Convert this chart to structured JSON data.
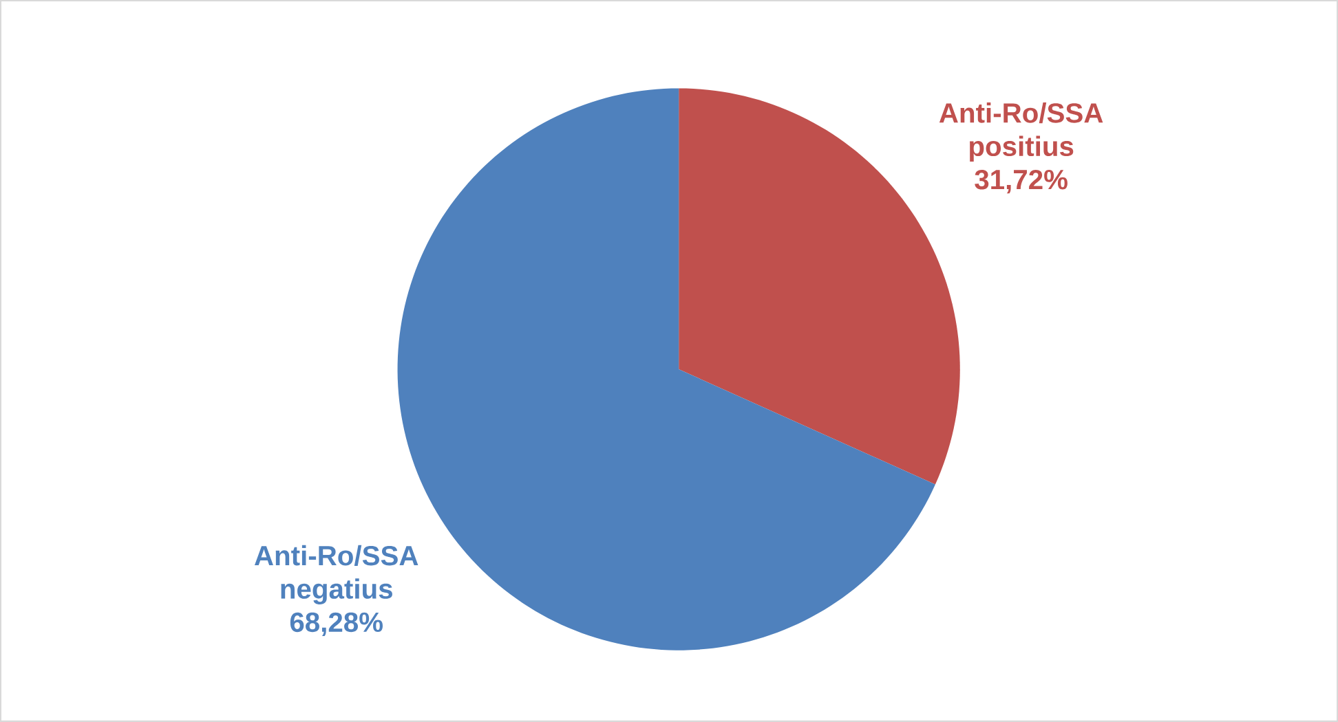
{
  "chart_data": {
    "type": "pie",
    "categories": [
      "Anti-Ro/SSA positius",
      "Anti-Ro/SSA negatius"
    ],
    "values": [
      31.72,
      68.28
    ],
    "colors": [
      "#c0504d",
      "#4f81bd"
    ],
    "value_labels": [
      "31,72%",
      "68,28%"
    ]
  }
}
